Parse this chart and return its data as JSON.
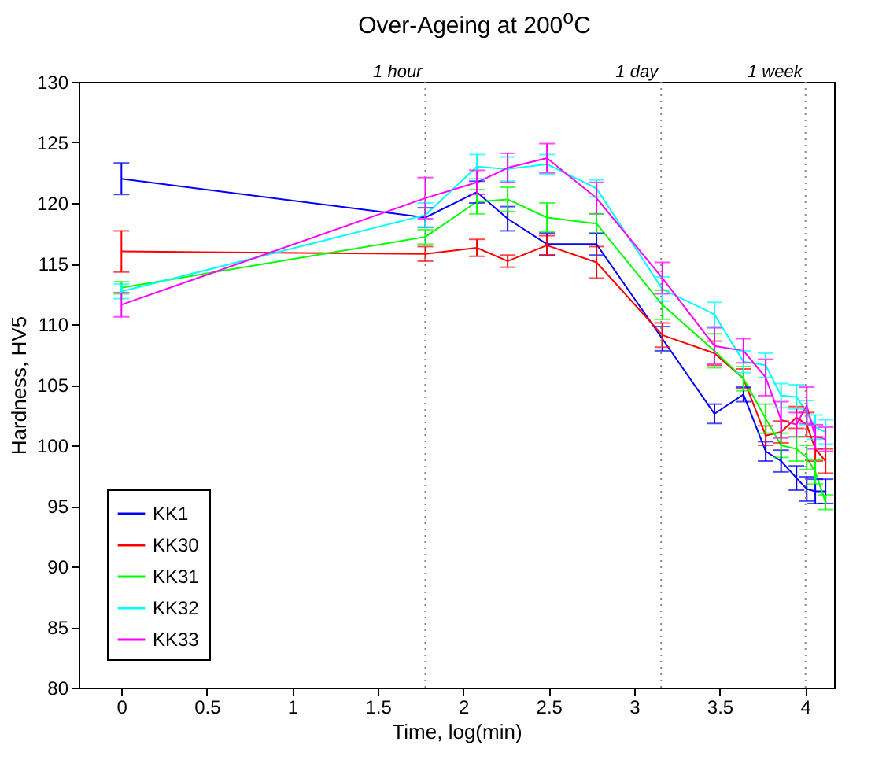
{
  "chart_data": {
    "type": "line",
    "title": "Over-Ageing at 200$^{o}$C",
    "xlabel": "Time, log(min)",
    "ylabel": "Hardness, HV5",
    "x": [
      0,
      1.778,
      2.08,
      2.26,
      2.49,
      2.78,
      3.165,
      3.47,
      3.64,
      3.77,
      3.86,
      3.95,
      4.01,
      4.06,
      4.12
    ],
    "series": [
      {
        "name": "KK1",
        "color": "#0000ff",
        "values": [
          122,
          118.8,
          120.9,
          118.7,
          116.6,
          116.6,
          108.8,
          102.6,
          104.2,
          99.5,
          98.7,
          97.3,
          96.4,
          96.2,
          96.2
        ],
        "errors": [
          1.3,
          0.8,
          0.9,
          1,
          0.9,
          0.9,
          1,
          0.8,
          0.6,
          0.8,
          0.9,
          1,
          1,
          1,
          1
        ]
      },
      {
        "name": "KK30",
        "color": "#ff0000",
        "values": [
          116,
          115.8,
          116.3,
          115.2,
          116.5,
          115.1,
          109.1,
          107.6,
          105.5,
          100.8,
          101.1,
          102.3,
          101.7,
          99.7,
          98.7
        ],
        "errors": [
          1.7,
          0.6,
          0.7,
          0.5,
          0.8,
          1.3,
          1,
          1,
          0.8,
          0.8,
          0.9,
          0.9,
          1,
          1,
          1
        ]
      },
      {
        "name": "KK31",
        "color": "#00ff00",
        "values": [
          113,
          117.2,
          120.1,
          120.3,
          118.8,
          118.3,
          111.6,
          107.8,
          105.5,
          102.2,
          100,
          99.7,
          99,
          97.8,
          95.3
        ],
        "errors": [
          0.5,
          0.6,
          1,
          1,
          1.2,
          0.8,
          1.2,
          1.4,
          1,
          1.2,
          1,
          1,
          1,
          1,
          0.6
        ]
      },
      {
        "name": "KK32",
        "color": "#00ffff",
        "values": [
          112.7,
          119,
          123,
          122.8,
          123.2,
          121.2,
          112.9,
          110.8,
          106.9,
          106.6,
          104.1,
          104,
          102.7,
          101.5,
          101.1
        ],
        "errors": [
          0.6,
          1,
          1,
          1,
          0.8,
          0.7,
          1,
          1,
          0.9,
          1,
          1,
          1,
          1,
          1,
          1
        ]
      },
      {
        "name": "KK33",
        "color": "#ff00ff",
        "values": [
          111.6,
          120.4,
          121.7,
          122.9,
          123.7,
          120.4,
          113.8,
          108.2,
          107.8,
          105.6,
          102.1,
          101.7,
          103.3,
          100.7,
          100.5
        ],
        "errors": [
          1,
          1.7,
          1,
          1.2,
          1.2,
          1.3,
          1.3,
          1.5,
          1,
          1.5,
          1.5,
          1,
          1.5,
          1,
          1
        ]
      }
    ],
    "xlim": [
      -0.25,
      4.17
    ],
    "xticks": [
      0,
      0.5,
      1,
      1.5,
      2,
      2.5,
      3,
      3.5,
      4
    ],
    "ylim": [
      80,
      130
    ],
    "yticks": [
      80,
      85,
      90,
      95,
      100,
      105,
      110,
      115,
      120,
      125,
      130
    ],
    "ref_lines": [
      {
        "axis": "x",
        "value": 1.778,
        "label": "1 hour",
        "line_style": "dotted"
      },
      {
        "axis": "x",
        "value": 3.158,
        "label": "1 day",
        "line_style": "dotted"
      },
      {
        "axis": "x",
        "value": 4.003,
        "label": "1 week",
        "line_style": "dotted"
      }
    ],
    "legend": "bottom left",
    "grid": false,
    "marker": "none",
    "line_style": "solid"
  }
}
